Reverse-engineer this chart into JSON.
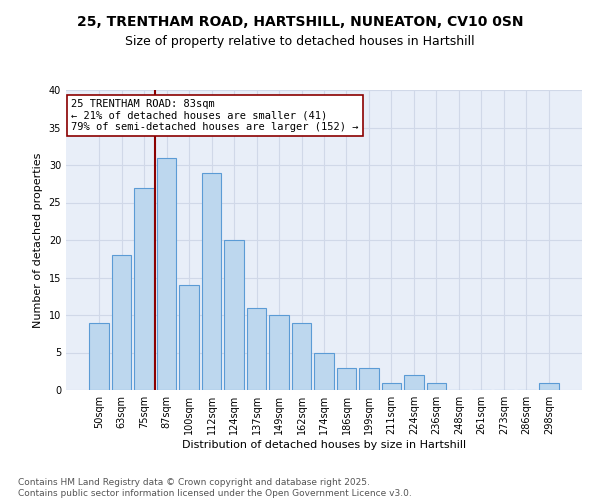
{
  "title_line1": "25, TRENTHAM ROAD, HARTSHILL, NUNEATON, CV10 0SN",
  "title_line2": "Size of property relative to detached houses in Hartshill",
  "xlabel": "Distribution of detached houses by size in Hartshill",
  "ylabel": "Number of detached properties",
  "categories": [
    "50sqm",
    "63sqm",
    "75sqm",
    "87sqm",
    "100sqm",
    "112sqm",
    "124sqm",
    "137sqm",
    "149sqm",
    "162sqm",
    "174sqm",
    "186sqm",
    "199sqm",
    "211sqm",
    "224sqm",
    "236sqm",
    "248sqm",
    "261sqm",
    "273sqm",
    "286sqm",
    "298sqm"
  ],
  "values": [
    9,
    18,
    27,
    31,
    14,
    29,
    20,
    11,
    10,
    9,
    5,
    3,
    3,
    1,
    2,
    1,
    0,
    0,
    0,
    0,
    1
  ],
  "bar_color": "#bdd7ee",
  "bar_edge_color": "#5b9bd5",
  "vline_x_index": 2.5,
  "vline_color": "#8b0000",
  "annotation_text": "25 TRENTHAM ROAD: 83sqm\n← 21% of detached houses are smaller (41)\n79% of semi-detached houses are larger (152) →",
  "annotation_box_color": "#ffffff",
  "annotation_box_edge_color": "#8b0000",
  "ylim": [
    0,
    40
  ],
  "yticks": [
    0,
    5,
    10,
    15,
    20,
    25,
    30,
    35,
    40
  ],
  "grid_color": "#d0d8e8",
  "bg_color": "#e8eef8",
  "footer_text": "Contains HM Land Registry data © Crown copyright and database right 2025.\nContains public sector information licensed under the Open Government Licence v3.0.",
  "title_fontsize": 10,
  "subtitle_fontsize": 9,
  "axis_label_fontsize": 8,
  "tick_fontsize": 7,
  "annotation_fontsize": 7.5,
  "footer_fontsize": 6.5
}
